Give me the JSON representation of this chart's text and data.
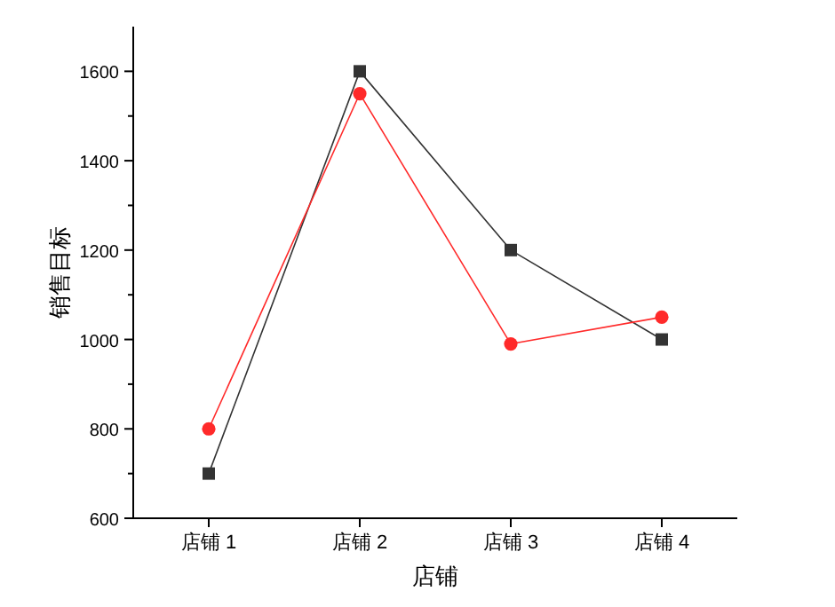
{
  "chart_data": {
    "type": "line",
    "xlabel": "店铺",
    "ylabel": "销售目标",
    "categories": [
      "店铺 1",
      "店铺 2",
      "店铺 3",
      "店铺 4"
    ],
    "series": [
      {
        "color": "#333333",
        "marker": "square",
        "values": [
          700,
          1600,
          1200,
          1000
        ]
      },
      {
        "color": "#ff2a2a",
        "marker": "circle",
        "values": [
          800,
          1550,
          990,
          1050
        ]
      }
    ],
    "ylim": [
      600,
      1700
    ],
    "yticks": [
      600,
      {
        "value": 700,
        "label": null
      },
      800,
      {
        "value": 900,
        "label": null
      },
      1000,
      {
        "value": 1100,
        "label": null
      },
      1200,
      {
        "value": 1300,
        "label": null
      },
      1400,
      {
        "value": 1500,
        "label": null
      },
      1600
    ],
    "grid": false,
    "line_style": "solid"
  }
}
